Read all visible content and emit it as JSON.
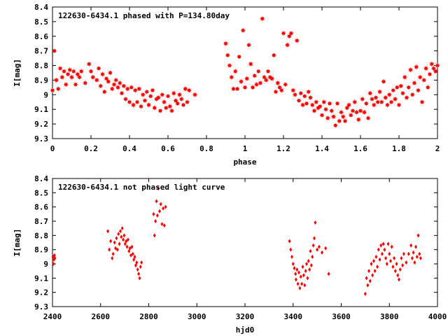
{
  "chart_data": [
    {
      "type": "scatter",
      "title": "122630-6434.1 phased with P=134.80day",
      "xlabel": "phase",
      "ylabel": "I[mag]",
      "xlim": [
        0,
        2
      ],
      "ylim": [
        9.3,
        8.4
      ],
      "y_inverted": true,
      "grid": false,
      "marker": "filled-star",
      "color": "#ff0000",
      "xticks": [
        0,
        0.2,
        0.4,
        0.6,
        0.8,
        1,
        1.2,
        1.4,
        1.6,
        1.8,
        2
      ],
      "xtick_labels": [
        "0",
        "0.2",
        "0.4",
        "0.6",
        "0.8",
        "1",
        "1.2",
        "1.4",
        "1.6",
        "1.8",
        "2"
      ],
      "yticks": [
        8.4,
        8.5,
        8.6,
        8.7,
        8.8,
        8.9,
        9.0,
        9.1,
        9.2,
        9.3
      ],
      "ytick_labels": [
        "8.4",
        "8.5",
        "8.6",
        "8.7",
        "8.8",
        "8.9",
        "9",
        "9.1",
        "9.2",
        "9.3"
      ],
      "points": [
        [
          0.0,
          8.97
        ],
        [
          0.01,
          8.7
        ],
        [
          0.02,
          8.9
        ],
        [
          0.03,
          8.96
        ],
        [
          0.04,
          8.82
        ],
        [
          0.05,
          8.88
        ],
        [
          0.06,
          8.84
        ],
        [
          0.07,
          8.93
        ],
        [
          0.08,
          8.86
        ],
        [
          0.09,
          8.83
        ],
        [
          0.1,
          8.88
        ],
        [
          0.11,
          8.84
        ],
        [
          0.12,
          8.93
        ],
        [
          0.13,
          8.86
        ],
        [
          0.14,
          8.88
        ],
        [
          0.15,
          8.84
        ],
        [
          0.17,
          8.92
        ],
        [
          0.19,
          8.79
        ],
        [
          0.2,
          8.84
        ],
        [
          0.21,
          8.88
        ],
        [
          0.23,
          8.9
        ],
        [
          0.24,
          8.82
        ],
        [
          0.25,
          8.94
        ],
        [
          0.26,
          8.86
        ],
        [
          0.27,
          8.98
        ],
        [
          0.28,
          8.89
        ],
        [
          0.29,
          8.91
        ],
        [
          0.3,
          8.85
        ],
        [
          0.31,
          8.96
        ],
        [
          0.32,
          8.93
        ],
        [
          0.33,
          8.9
        ],
        [
          0.34,
          8.95
        ],
        [
          0.35,
          8.92
        ],
        [
          0.36,
          8.99
        ],
        [
          0.37,
          8.94
        ],
        [
          0.38,
          9.03
        ],
        [
          0.39,
          8.96
        ],
        [
          0.4,
          9.05
        ],
        [
          0.41,
          8.95
        ],
        [
          0.42,
          9.07
        ],
        [
          0.43,
          8.97
        ],
        [
          0.44,
          9.05
        ],
        [
          0.45,
          8.96
        ],
        [
          0.46,
          9.08
        ],
        [
          0.47,
          9.0
        ],
        [
          0.48,
          9.04
        ],
        [
          0.49,
          8.98
        ],
        [
          0.5,
          9.07
        ],
        [
          0.51,
          9.01
        ],
        [
          0.52,
          8.97
        ],
        [
          0.53,
          9.09
        ],
        [
          0.54,
          9.03
        ],
        [
          0.55,
          9.02
        ],
        [
          0.56,
          9.11
        ],
        [
          0.57,
          9.0
        ],
        [
          0.58,
          9.05
        ],
        [
          0.59,
          9.09
        ],
        [
          0.6,
          9.01
        ],
        [
          0.61,
          9.08
        ],
        [
          0.62,
          9.11
        ],
        [
          0.63,
          8.99
        ],
        [
          0.64,
          9.04
        ],
        [
          0.65,
          9.06
        ],
        [
          0.66,
          9.0
        ],
        [
          0.67,
          9.03
        ],
        [
          0.68,
          9.07
        ],
        [
          0.69,
          8.96
        ],
        [
          0.7,
          9.05
        ],
        [
          0.71,
          8.97
        ],
        [
          0.74,
          9.0
        ],
        [
          0.9,
          8.65
        ],
        [
          0.91,
          8.73
        ],
        [
          0.92,
          8.8
        ],
        [
          0.93,
          8.88
        ],
        [
          0.94,
          8.96
        ],
        [
          0.95,
          8.84
        ],
        [
          0.96,
          8.96
        ],
        [
          0.97,
          8.74
        ],
        [
          0.98,
          8.91
        ],
        [
          0.99,
          8.56
        ],
        [
          1.0,
          8.95
        ],
        [
          1.01,
          8.89
        ],
        [
          1.02,
          8.66
        ],
        [
          1.03,
          8.79
        ],
        [
          1.04,
          8.95
        ],
        [
          1.05,
          8.87
        ],
        [
          1.06,
          8.93
        ],
        [
          1.07,
          8.84
        ],
        [
          1.08,
          8.92
        ],
        [
          1.09,
          8.48
        ],
        [
          1.1,
          8.88
        ],
        [
          1.11,
          8.9
        ],
        [
          1.12,
          8.84
        ],
        [
          1.13,
          8.88
        ],
        [
          1.14,
          8.89
        ],
        [
          1.15,
          8.73
        ],
        [
          1.16,
          8.98
        ],
        [
          1.17,
          8.92
        ],
        [
          1.18,
          8.95
        ],
        [
          1.19,
          8.97
        ],
        [
          1.2,
          8.58
        ],
        [
          1.21,
          8.93
        ],
        [
          1.22,
          8.66
        ],
        [
          1.23,
          8.6
        ],
        [
          1.24,
          8.58
        ],
        [
          1.25,
          8.97
        ],
        [
          1.26,
          9.0
        ],
        [
          1.27,
          8.63
        ],
        [
          1.28,
          9.04
        ],
        [
          1.29,
          8.99
        ],
        [
          1.3,
          9.07
        ],
        [
          1.31,
          9.01
        ],
        [
          1.32,
          9.06
        ],
        [
          1.33,
          8.98
        ],
        [
          1.34,
          9.02
        ],
        [
          1.35,
          9.07
        ],
        [
          1.36,
          9.11
        ],
        [
          1.37,
          9.05
        ],
        [
          1.38,
          9.09
        ],
        [
          1.39,
          9.08
        ],
        [
          1.4,
          9.14
        ],
        [
          1.41,
          9.05
        ],
        [
          1.42,
          9.1
        ],
        [
          1.43,
          9.16
        ],
        [
          1.44,
          9.06
        ],
        [
          1.45,
          9.11
        ],
        [
          1.46,
          9.15
        ],
        [
          1.47,
          9.21
        ],
        [
          1.48,
          9.06
        ],
        [
          1.49,
          9.18
        ],
        [
          1.5,
          9.12
        ],
        [
          1.51,
          9.15
        ],
        [
          1.52,
          9.18
        ],
        [
          1.53,
          9.09
        ],
        [
          1.54,
          9.07
        ],
        [
          1.55,
          9.14
        ],
        [
          1.56,
          9.11
        ],
        [
          1.57,
          9.05
        ],
        [
          1.58,
          9.12
        ],
        [
          1.59,
          9.17
        ],
        [
          1.6,
          9.11
        ],
        [
          1.61,
          9.03
        ],
        [
          1.62,
          9.12
        ],
        [
          1.63,
          9.06
        ],
        [
          1.64,
          9.16
        ],
        [
          1.65,
          8.99
        ],
        [
          1.66,
          9.03
        ],
        [
          1.67,
          9.07
        ],
        [
          1.68,
          9.02
        ],
        [
          1.69,
          9.05
        ],
        [
          1.7,
          8.98
        ],
        [
          1.71,
          9.05
        ],
        [
          1.72,
          8.91
        ],
        [
          1.73,
          9.02
        ],
        [
          1.74,
          9.07
        ],
        [
          1.75,
          9.0
        ],
        [
          1.76,
          9.05
        ],
        [
          1.77,
          8.97
        ],
        [
          1.78,
          9.03
        ],
        [
          1.79,
          8.95
        ],
        [
          1.8,
          9.07
        ],
        [
          1.81,
          8.94
        ],
        [
          1.82,
          8.99
        ],
        [
          1.83,
          8.88
        ],
        [
          1.84,
          9.02
        ],
        [
          1.85,
          8.95
        ],
        [
          1.86,
          8.83
        ],
        [
          1.87,
          9.0
        ],
        [
          1.88,
          8.92
        ],
        [
          1.89,
          8.81
        ],
        [
          1.9,
          8.97
        ],
        [
          1.91,
          8.88
        ],
        [
          1.92,
          9.05
        ],
        [
          1.93,
          8.9
        ],
        [
          1.94,
          8.82
        ],
        [
          1.95,
          8.95
        ],
        [
          1.96,
          8.86
        ],
        [
          1.97,
          8.79
        ],
        [
          1.98,
          8.82
        ],
        [
          1.99,
          8.84
        ],
        [
          2.0,
          8.8
        ]
      ]
    },
    {
      "type": "scatter",
      "title": "122630-6434.1 not phased light curve",
      "xlabel": "hjd0",
      "ylabel": "I[mag]",
      "xlim": [
        2400,
        4000
      ],
      "ylim": [
        9.3,
        8.4
      ],
      "y_inverted": true,
      "grid": false,
      "marker": "filled-diamond",
      "color": "#ff0000",
      "xticks": [
        2400,
        2600,
        2800,
        3000,
        3200,
        3400,
        3600,
        3800,
        4000
      ],
      "xtick_labels": [
        "2400",
        "2600",
        "2800",
        "3000",
        "3200",
        "3400",
        "3600",
        "3800",
        "4000"
      ],
      "yticks": [
        8.4,
        8.5,
        8.6,
        8.7,
        8.8,
        8.9,
        9.0,
        9.1,
        9.2,
        9.3
      ],
      "ytick_labels": [
        "8.4",
        "8.5",
        "8.6",
        "8.7",
        "8.8",
        "8.9",
        "9",
        "9.1",
        "9.2",
        "9.3"
      ],
      "points": [
        [
          2402,
          8.95
        ],
        [
          2404,
          9.0
        ],
        [
          2406,
          8.97
        ],
        [
          2408,
          8.94
        ],
        [
          2410,
          8.96
        ],
        [
          2630,
          8.77
        ],
        [
          2636,
          8.9
        ],
        [
          2642,
          8.84
        ],
        [
          2648,
          8.96
        ],
        [
          2652,
          8.93
        ],
        [
          2658,
          8.85
        ],
        [
          2662,
          8.89
        ],
        [
          2666,
          8.82
        ],
        [
          2670,
          8.9
        ],
        [
          2674,
          8.79
        ],
        [
          2678,
          8.86
        ],
        [
          2682,
          8.77
        ],
        [
          2686,
          8.81
        ],
        [
          2690,
          8.75
        ],
        [
          2694,
          8.83
        ],
        [
          2698,
          8.8
        ],
        [
          2702,
          8.86
        ],
        [
          2706,
          8.84
        ],
        [
          2710,
          8.88
        ],
        [
          2714,
          8.83
        ],
        [
          2718,
          8.91
        ],
        [
          2722,
          8.89
        ],
        [
          2726,
          8.94
        ],
        [
          2730,
          8.88
        ],
        [
          2734,
          8.93
        ],
        [
          2738,
          8.97
        ],
        [
          2742,
          8.95
        ],
        [
          2746,
          9.01
        ],
        [
          2750,
          8.99
        ],
        [
          2754,
          9.04
        ],
        [
          2758,
          9.07
        ],
        [
          2762,
          9.1
        ],
        [
          2766,
          9.02
        ],
        [
          2770,
          8.99
        ],
        [
          2820,
          8.65
        ],
        [
          2824,
          8.8
        ],
        [
          2828,
          8.7
        ],
        [
          2832,
          8.56
        ],
        [
          2836,
          8.66
        ],
        [
          2840,
          8.47
        ],
        [
          2845,
          8.63
        ],
        [
          2850,
          8.58
        ],
        [
          2855,
          8.72
        ],
        [
          2860,
          8.61
        ],
        [
          2865,
          8.73
        ],
        [
          2870,
          8.6
        ],
        [
          3385,
          8.84
        ],
        [
          3390,
          8.9
        ],
        [
          3395,
          8.95
        ],
        [
          3400,
          9.0
        ],
        [
          3405,
          9.03
        ],
        [
          3410,
          9.07
        ],
        [
          3412,
          9.11
        ],
        [
          3416,
          9.04
        ],
        [
          3420,
          9.14
        ],
        [
          3424,
          9.06
        ],
        [
          3428,
          9.17
        ],
        [
          3432,
          9.09
        ],
        [
          3436,
          9.14
        ],
        [
          3440,
          9.02
        ],
        [
          3444,
          9.08
        ],
        [
          3448,
          9.15
        ],
        [
          3452,
          9.05
        ],
        [
          3456,
          9.0
        ],
        [
          3460,
          9.1
        ],
        [
          3464,
          8.98
        ],
        [
          3468,
          9.04
        ],
        [
          3472,
          8.91
        ],
        [
          3476,
          9.01
        ],
        [
          3480,
          8.95
        ],
        [
          3484,
          8.87
        ],
        [
          3488,
          8.82
        ],
        [
          3492,
          8.71
        ],
        [
          3500,
          8.9
        ],
        [
          3508,
          8.88
        ],
        [
          3520,
          8.92
        ],
        [
          3535,
          8.89
        ],
        [
          3548,
          9.07
        ],
        [
          3700,
          9.21
        ],
        [
          3705,
          9.1
        ],
        [
          3710,
          9.15
        ],
        [
          3715,
          9.05
        ],
        [
          3720,
          9.12
        ],
        [
          3725,
          9.0
        ],
        [
          3730,
          9.08
        ],
        [
          3735,
          8.98
        ],
        [
          3740,
          9.05
        ],
        [
          3745,
          8.95
        ],
        [
          3750,
          9.02
        ],
        [
          3755,
          8.9
        ],
        [
          3760,
          8.97
        ],
        [
          3765,
          8.87
        ],
        [
          3770,
          8.93
        ],
        [
          3775,
          8.86
        ],
        [
          3780,
          8.9
        ],
        [
          3785,
          8.96
        ],
        [
          3790,
          9.0
        ],
        [
          3795,
          8.86
        ],
        [
          3800,
          8.93
        ],
        [
          3805,
          8.98
        ],
        [
          3810,
          8.88
        ],
        [
          3815,
          9.02
        ],
        [
          3820,
          8.96
        ],
        [
          3825,
          9.05
        ],
        [
          3830,
          9.0
        ],
        [
          3835,
          9.08
        ],
        [
          3840,
          9.11
        ],
        [
          3845,
          9.04
        ],
        [
          3850,
          8.96
        ],
        [
          3855,
          9.01
        ],
        [
          3860,
          8.93
        ],
        [
          3870,
          8.99
        ],
        [
          3880,
          8.93
        ],
        [
          3890,
          8.87
        ],
        [
          3895,
          8.96
        ],
        [
          3900,
          8.92
        ],
        [
          3905,
          8.99
        ],
        [
          3910,
          8.88
        ],
        [
          3915,
          8.95
        ],
        [
          3920,
          8.8
        ],
        [
          3925,
          8.93
        ],
        [
          3930,
          8.96
        ]
      ]
    }
  ]
}
